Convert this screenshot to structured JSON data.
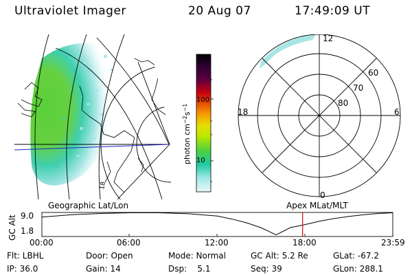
{
  "header": {
    "instrument": "Ultraviolet Imager",
    "date": "20 Aug 07",
    "time": "17:49:09 UT"
  },
  "colorbar": {
    "label": "photon cm",
    "label_sup1": "−2",
    "label_mid": "s",
    "label_sup2": "−1",
    "ticks": [
      "100",
      "10"
    ],
    "colors": [
      "#000000",
      "#2a0030",
      "#5a0040",
      "#8a0010",
      "#c80010",
      "#e85000",
      "#f5a000",
      "#e5e000",
      "#b8e800",
      "#7ee020",
      "#40d040",
      "#20c8a0",
      "#40d0d0",
      "#a0e8e8",
      "#e6f6f6"
    ]
  },
  "geo_panel": {
    "label": "Geographic Lat/Lon",
    "ground_label": "18"
  },
  "polar_panel": {
    "label": "Apex  MLat/MLT",
    "mlt_labels": {
      "top": "12",
      "left": "18",
      "right": "6",
      "bottom": "0"
    },
    "lat_labels": [
      "60",
      "70",
      "80"
    ]
  },
  "chart_data": {
    "type": "line",
    "title": "",
    "ylabel": "GC Alt",
    "ylim": [
      1.8,
      9.0
    ],
    "yticks": [
      "9.0",
      "1.8"
    ],
    "xticks": [
      "00:00",
      "06:00",
      "12:00",
      "18:00",
      "23:59"
    ],
    "x": [
      0,
      2,
      4,
      6,
      8,
      10,
      12,
      13,
      14,
      15,
      16,
      17,
      17.82,
      19,
      20,
      21,
      22,
      23,
      23.98
    ],
    "y": [
      7.6,
      8.3,
      8.7,
      8.9,
      8.9,
      8.6,
      7.9,
      7.0,
      5.9,
      4.4,
      2.3,
      4.5,
      5.2,
      6.4,
      7.2,
      7.8,
      8.3,
      8.7,
      8.9
    ],
    "current_time": 17.82,
    "current_marker_color": "#e00000"
  },
  "info": {
    "rows": [
      [
        "Flt: LBHL",
        "Door: Open",
        "Mode: Normal",
        "GC Alt: 5.2 Re",
        "GLat: -67.2"
      ],
      [
        "IP: 36.0",
        "Gain: 14",
        "Dsp:    5.1",
        "Seq: 39",
        "GLon: 288.1"
      ]
    ]
  }
}
